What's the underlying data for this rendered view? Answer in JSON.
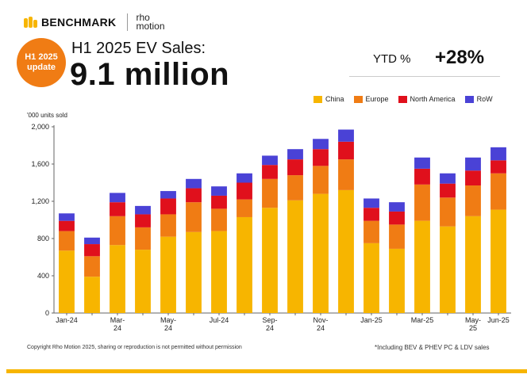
{
  "brand": {
    "name": "BENCHMARK",
    "partner_line1": "rho",
    "partner_line2": "motion"
  },
  "badge": {
    "line1": "H1 2025",
    "line2": "update"
  },
  "subtitle": "H1 2025 EV Sales:",
  "headline": "9.1 million",
  "ytd": {
    "label": "YTD %",
    "value": "+28%"
  },
  "unit_label": "'000 units sold",
  "copyright": "Copyright Rho Motion 2025, sharing or reproduction is not permitted without permission",
  "footnote": "*Including BEV & PHEV PC & LDV sales",
  "colors": {
    "brand": "#f7b500",
    "badge": "#f07c14"
  },
  "chart_data": {
    "type": "bar",
    "stacked": true,
    "categories": [
      "Jan-24",
      "Feb-24",
      "Mar-24",
      "Apr-24",
      "May-24",
      "Jun-24",
      "Jul-24",
      "Aug-24",
      "Sep-24",
      "Oct-24",
      "Nov-24",
      "Dec-24",
      "Jan-25",
      "Feb-25",
      "Mar-25",
      "Apr-25",
      "May-25",
      "Jun-25"
    ],
    "tick_labels": [
      [
        "Jan-24"
      ],
      [
        ""
      ],
      [
        "Mar-",
        "24"
      ],
      [
        ""
      ],
      [
        "May-",
        "24"
      ],
      [
        ""
      ],
      [
        "Jul-24"
      ],
      [
        ""
      ],
      [
        "Sep-",
        "24"
      ],
      [
        ""
      ],
      [
        "Nov-",
        "24"
      ],
      [
        ""
      ],
      [
        "Jan-25"
      ],
      [
        ""
      ],
      [
        "Mar-25"
      ],
      [
        ""
      ],
      [
        "May-",
        "25"
      ],
      [
        "Jun-25"
      ]
    ],
    "series": [
      {
        "name": "China",
        "color": "#f7b500",
        "values": [
          670,
          390,
          730,
          680,
          820,
          870,
          880,
          1030,
          1130,
          1210,
          1280,
          1320,
          750,
          690,
          990,
          930,
          1040,
          1110
        ]
      },
      {
        "name": "Europe",
        "color": "#f07c14",
        "values": [
          210,
          220,
          310,
          240,
          240,
          320,
          240,
          190,
          310,
          270,
          300,
          330,
          240,
          260,
          390,
          310,
          330,
          390
        ]
      },
      {
        "name": "North America",
        "color": "#e0101c",
        "values": [
          110,
          130,
          150,
          140,
          170,
          150,
          140,
          180,
          150,
          170,
          180,
          190,
          140,
          140,
          170,
          150,
          160,
          140
        ]
      },
      {
        "name": "RoW",
        "color": "#4a42d6",
        "values": [
          80,
          70,
          100,
          90,
          80,
          100,
          100,
          100,
          100,
          110,
          110,
          130,
          100,
          100,
          120,
          110,
          140,
          140
        ]
      }
    ],
    "yticks": [
      0,
      400,
      800,
      1200,
      1600,
      2000
    ],
    "ytick_labels": [
      "0",
      "400",
      "800",
      "1,200",
      "1,600",
      "2,000"
    ],
    "ylim": [
      0,
      2000
    ],
    "legend": "top-right",
    "grid": false
  }
}
